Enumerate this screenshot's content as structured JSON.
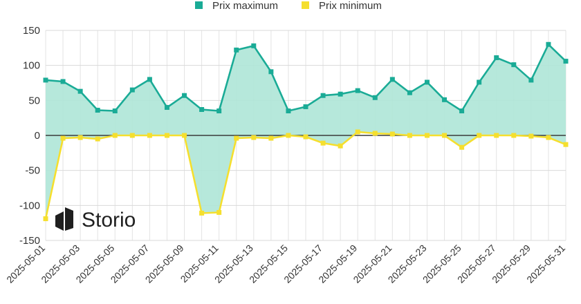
{
  "chart_data": {
    "type": "area",
    "title": "",
    "xlabel": "",
    "ylabel": "",
    "ylim": [
      -150,
      150
    ],
    "yticks": [
      150,
      100,
      50,
      0,
      -50,
      -100,
      -150
    ],
    "grid": true,
    "legend_position": "top",
    "x": [
      "2025-05-01",
      "2025-05-02",
      "2025-05-03",
      "2025-05-04",
      "2025-05-05",
      "2025-05-06",
      "2025-05-07",
      "2025-05-08",
      "2025-05-09",
      "2025-05-10",
      "2025-05-11",
      "2025-05-12",
      "2025-05-13",
      "2025-05-14",
      "2025-05-15",
      "2025-05-16",
      "2025-05-17",
      "2025-05-18",
      "2025-05-19",
      "2025-05-20",
      "2025-05-21",
      "2025-05-22",
      "2025-05-23",
      "2025-05-24",
      "2025-05-25",
      "2025-05-26",
      "2025-05-27",
      "2025-05-28",
      "2025-05-29",
      "2025-05-30",
      "2025-05-31"
    ],
    "xtick_labels": [
      "2025-05-01",
      "2025-05-03",
      "2025-05-05",
      "2025-05-07",
      "2025-05-09",
      "2025-05-11",
      "2025-05-13",
      "2025-05-15",
      "2025-05-17",
      "2025-05-19",
      "2025-05-21",
      "2025-05-23",
      "2025-05-25",
      "2025-05-27",
      "2025-05-29",
      "2025-05-31"
    ],
    "series": [
      {
        "name": "Prix maximum",
        "color": "#1aab96",
        "values": [
          79,
          77,
          63,
          36,
          35,
          65,
          80,
          40,
          57,
          37,
          35,
          122,
          128,
          91,
          35,
          41,
          57,
          59,
          64,
          54,
          80,
          61,
          76,
          51,
          35,
          76,
          111,
          101,
          79,
          130,
          106
        ]
      },
      {
        "name": "Prix minimum",
        "color": "#f5df2e",
        "values": [
          -119,
          -4,
          -3,
          -5,
          0,
          0,
          0,
          0,
          0,
          -111,
          -110,
          -4,
          -3,
          -4,
          0,
          -2,
          -11,
          -15,
          5,
          3,
          2,
          0,
          0,
          0,
          -17,
          0,
          0,
          0,
          -1,
          -3,
          -13
        ]
      }
    ],
    "fill_between": {
      "color": "#aee6d7"
    }
  },
  "watermark": {
    "text": "Storio",
    "icon": "storio-logo-icon"
  }
}
